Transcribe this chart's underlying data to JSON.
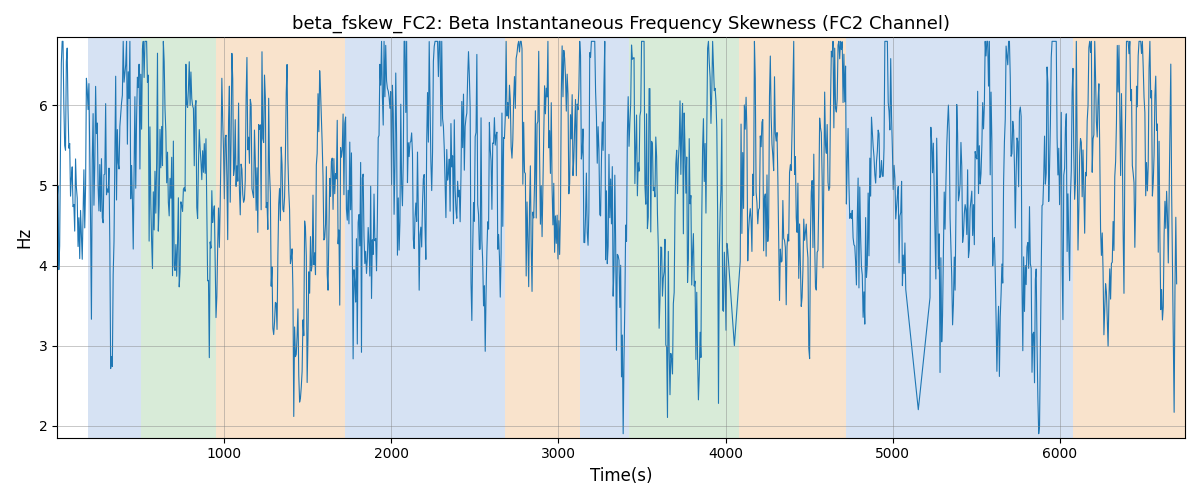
{
  "title": "beta_fskew_FC2: Beta Instantaneous Frequency Skewness (FC2 Channel)",
  "xlabel": "Time(s)",
  "ylabel": "Hz",
  "ylim": [
    1.85,
    6.85
  ],
  "xlim": [
    0,
    6750
  ],
  "line_color": "#1f77b4",
  "line_width": 0.8,
  "background_regions": [
    {
      "xmin": 185,
      "xmax": 500,
      "color": "#aec6e8",
      "alpha": 0.5
    },
    {
      "xmin": 500,
      "xmax": 950,
      "color": "#b2d8b2",
      "alpha": 0.5
    },
    {
      "xmin": 950,
      "xmax": 1720,
      "color": "#f5c99a",
      "alpha": 0.5
    },
    {
      "xmin": 1720,
      "xmax": 2680,
      "color": "#aec6e8",
      "alpha": 0.5
    },
    {
      "xmin": 2680,
      "xmax": 3130,
      "color": "#f5c99a",
      "alpha": 0.5
    },
    {
      "xmin": 3130,
      "xmax": 3420,
      "color": "#aec6e8",
      "alpha": 0.5
    },
    {
      "xmin": 3420,
      "xmax": 4080,
      "color": "#b2d8b2",
      "alpha": 0.5
    },
    {
      "xmin": 4080,
      "xmax": 4720,
      "color": "#f5c99a",
      "alpha": 0.5
    },
    {
      "xmin": 4720,
      "xmax": 6080,
      "color": "#aec6e8",
      "alpha": 0.5
    },
    {
      "xmin": 6080,
      "xmax": 6750,
      "color": "#f5c99a",
      "alpha": 0.5
    }
  ],
  "n_points": 1340,
  "x_start": 0,
  "x_end": 6700,
  "mean": 5.0,
  "base_std": 0.45,
  "high_freq_std": 0.35,
  "seed": 17
}
